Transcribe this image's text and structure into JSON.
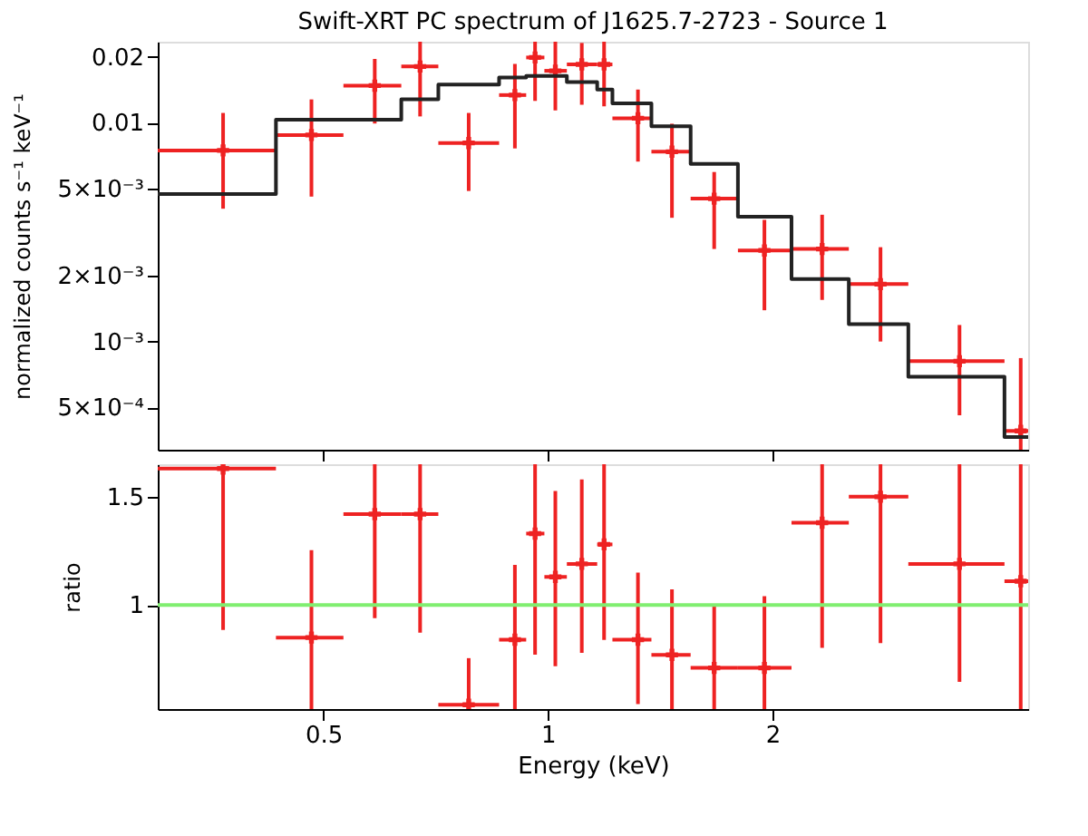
{
  "chart_data": [
    {
      "type": "scatter",
      "title": "Swift-XRT PC spectrum of J1625.7-2723 - Source 1",
      "ylabel": "normalized counts s⁻¹ keV⁻¹",
      "log": "xy",
      "xlim": [
        0.3,
        4.4
      ],
      "ylim": [
        0.00032,
        0.0235
      ],
      "xticks": [
        0.5,
        1,
        2
      ],
      "yticks": [
        0.02,
        0.01,
        {
          "value": 0.005,
          "label": "5×10⁻³"
        },
        {
          "value": 0.002,
          "label": "2×10⁻³"
        },
        {
          "value": 0.001,
          "label": "10⁻³"
        },
        {
          "value": 0.0005,
          "label": "5×10⁻⁴"
        }
      ],
      "tick_labels": "y",
      "series": [
        {
          "color": "#ee2222",
          "marker": "cross",
          "x": [
            0.367,
            0.482,
            0.586,
            0.674,
            0.783,
            0.903,
            0.961,
            1.023,
            1.11,
            1.189,
            1.32,
            1.466,
            1.67,
            1.95,
            2.33,
            2.79,
            3.56,
            4.3
          ],
          "values": [
            0.00748,
            0.0088,
            0.0148,
            0.0181,
            0.00809,
            0.0134,
            0.0199,
            0.0173,
            0.0185,
            0.0185,
            0.0105,
            0.00738,
            0.0045,
            0.00261,
            0.00265,
            0.00183,
            0.000813,
            0.00039
          ],
          "errors": [
            [
              0.00405,
              0.0111
            ],
            [
              0.0046,
              0.0128
            ],
            [
              0.00993,
              0.0196
            ],
            [
              0.0107,
              0.0235
            ],
            [
              0.00488,
              0.0111
            ],
            [
              0.00764,
              0.0186
            ],
            [
              0.0126,
              0.0235
            ],
            [
              0.0114,
              0.0235
            ],
            [
              0.0121,
              0.0232
            ],
            [
              0.0119,
              0.0235
            ],
            [
              0.00665,
              0.0142
            ],
            [
              0.00368,
              0.00991
            ],
            [
              0.00265,
              0.00596
            ],
            [
              0.00139,
              0.0036
            ],
            [
              0.00155,
              0.0038
            ],
            [
              0.001,
              0.0027
            ],
            [
              0.00046,
              0.00119
            ],
            [
              0.00032,
              0.00084
            ]
          ],
          "xerrors": [
            [
              0.3,
              0.432
            ],
            [
              0.432,
              0.532
            ],
            [
              0.532,
              0.636
            ],
            [
              0.636,
              0.713
            ],
            [
              0.713,
              0.86
            ],
            [
              0.86,
              0.935
            ],
            [
              0.935,
              0.989
            ],
            [
              0.989,
              1.06
            ],
            [
              1.06,
              1.164
            ],
            [
              1.164,
              1.22
            ],
            [
              1.22,
              1.376
            ],
            [
              1.376,
              1.553
            ],
            [
              1.553,
              1.797
            ],
            [
              1.797,
              2.12
            ],
            [
              2.12,
              2.53
            ],
            [
              2.53,
              3.04
            ],
            [
              3.04,
              4.09
            ],
            [
              4.09,
              4.4
            ]
          ]
        },
        {
          "type": "step",
          "color": "#222222",
          "x": [
            0.3,
            0.432,
            0.532,
            0.636,
            0.713,
            0.86,
            0.935,
            0.989,
            1.06,
            1.164,
            1.22,
            1.376,
            1.553,
            1.797,
            2.12,
            2.53,
            3.04,
            4.09,
            4.4
          ],
          "values": [
            0.00472,
            0.01035,
            0.01035,
            0.01283,
            0.01497,
            0.0161,
            0.0164,
            0.0164,
            0.01538,
            0.0142,
            0.01228,
            0.00965,
            0.00649,
            0.00372,
            0.00193,
            0.0012,
            0.00069,
            0.000366,
            0.000366
          ]
        }
      ]
    },
    {
      "type": "scatter",
      "xlabel": "Energy (keV)",
      "ylabel": "ratio",
      "log": "x",
      "xlim": [
        0.3,
        4.4
      ],
      "ylim": [
        0.52,
        1.65
      ],
      "xticks": [
        0.5,
        1,
        2
      ],
      "yticks": [
        1,
        1.5
      ],
      "ref_lines": [
        {
          "axis": "y",
          "value": 1,
          "color": "#80ee70"
        }
      ],
      "series": [
        {
          "color": "#ee2222",
          "marker": "cross",
          "x": [
            0.367,
            0.482,
            0.586,
            0.674,
            0.783,
            0.903,
            0.961,
            1.023,
            1.11,
            1.189,
            1.32,
            1.466,
            1.67,
            1.95,
            2.33,
            2.79,
            3.56,
            4.3
          ],
          "values": [
            1.63,
            0.85,
            1.42,
            1.42,
            0.54,
            0.84,
            1.33,
            1.13,
            1.19,
            1.28,
            0.84,
            0.77,
            0.71,
            0.71,
            1.38,
            1.5,
            1.19,
            1.11
          ],
          "errors": [
            [
              0.885,
              1.65
            ],
            [
              0.52,
              1.253
            ],
            [
              0.94,
              1.65
            ],
            [
              0.873,
              1.65
            ],
            [
              0.52,
              0.755
            ],
            [
              0.52,
              1.185
            ],
            [
              0.771,
              1.65
            ],
            [
              0.718,
              1.527
            ],
            [
              0.78,
              1.58
            ],
            [
              0.839,
              1.65
            ],
            [
              0.543,
              1.15
            ],
            [
              0.52,
              1.072
            ],
            [
              0.52,
              0.998
            ],
            [
              0.52,
              1.041
            ],
            [
              0.802,
              1.65
            ],
            [
              0.824,
              1.65
            ],
            [
              0.646,
              1.65
            ],
            [
              0.52,
              1.65
            ]
          ],
          "xerrors": [
            [
              0.3,
              0.432
            ],
            [
              0.432,
              0.532
            ],
            [
              0.532,
              0.636
            ],
            [
              0.636,
              0.713
            ],
            [
              0.713,
              0.86
            ],
            [
              0.86,
              0.935
            ],
            [
              0.935,
              0.989
            ],
            [
              0.989,
              1.06
            ],
            [
              1.06,
              1.164
            ],
            [
              1.164,
              1.22
            ],
            [
              1.22,
              1.376
            ],
            [
              1.376,
              1.553
            ],
            [
              1.553,
              1.797
            ],
            [
              1.797,
              2.12
            ],
            [
              2.12,
              2.53
            ],
            [
              2.53,
              3.04
            ],
            [
              3.04,
              4.09
            ],
            [
              4.09,
              4.4
            ]
          ]
        }
      ]
    }
  ]
}
